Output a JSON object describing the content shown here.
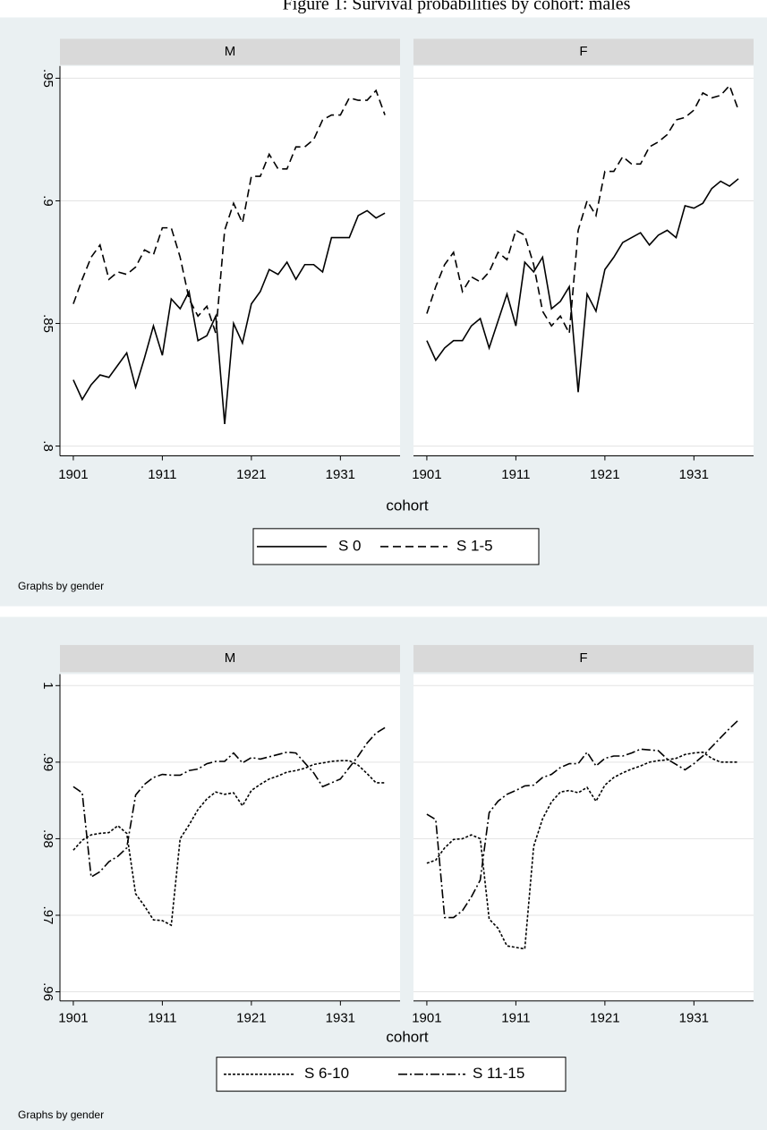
{
  "title": "Figure 1: Survival probabilities by cohort: males",
  "chart_data": [
    {
      "type": "line",
      "xlabel": "cohort",
      "note": "Graphs by gender",
      "grid": true,
      "x": [
        1901,
        1902,
        1903,
        1904,
        1905,
        1906,
        1907,
        1908,
        1909,
        1910,
        1911,
        1912,
        1913,
        1914,
        1915,
        1916,
        1917,
        1918,
        1919,
        1920,
        1921,
        1922,
        1923,
        1924,
        1925,
        1926,
        1927,
        1928,
        1929,
        1930,
        1931,
        1932,
        1933,
        1934,
        1935,
        1936
      ],
      "xlim": [
        1899.5,
        1937.7
      ],
      "xticks": [
        1901,
        1911,
        1921,
        1931
      ],
      "ylim": [
        0.796,
        0.955
      ],
      "yticks": [
        {
          "value": 0.8,
          "label": ".8"
        },
        {
          "value": 0.85,
          "label": ".85"
        },
        {
          "value": 0.9,
          "label": ".9"
        },
        {
          "value": 0.95,
          "label": ".95"
        }
      ],
      "series": [
        {
          "name": "S 0",
          "color": "#000000",
          "dash": "solid"
        },
        {
          "name": "S 1-5",
          "color": "#000000",
          "dash": "longdash"
        }
      ],
      "panels": [
        {
          "title": "M",
          "values": [
            [
              0.827,
              0.819,
              0.825,
              0.829,
              0.828,
              0.833,
              0.838,
              0.824,
              0.836,
              0.849,
              0.837,
              0.86,
              0.856,
              0.863,
              0.843,
              0.845,
              0.853,
              0.809,
              0.85,
              0.842,
              0.858,
              0.863,
              0.872,
              0.87,
              0.875,
              0.868,
              0.874,
              0.874,
              0.871,
              0.885,
              0.885,
              0.885,
              0.894,
              0.896,
              0.893,
              0.895
            ],
            [
              0.858,
              0.868,
              0.877,
              0.882,
              0.868,
              0.871,
              0.87,
              0.873,
              0.88,
              0.878,
              0.889,
              0.889,
              0.877,
              0.86,
              0.853,
              0.857,
              0.846,
              0.888,
              0.899,
              0.891,
              0.91,
              0.91,
              0.919,
              0.913,
              0.913,
              0.922,
              0.922,
              0.925,
              0.933,
              0.935,
              0.935,
              0.942,
              0.941,
              0.941,
              0.945,
              0.935
            ]
          ]
        },
        {
          "title": "F",
          "values": [
            [
              0.843,
              0.835,
              0.84,
              0.843,
              0.843,
              0.849,
              0.852,
              0.84,
              0.851,
              0.862,
              0.849,
              0.875,
              0.871,
              0.877,
              0.856,
              0.859,
              0.865,
              0.822,
              0.862,
              0.855,
              0.872,
              0.877,
              0.883,
              0.885,
              0.887,
              0.882,
              0.886,
              0.888,
              0.885,
              0.898,
              0.897,
              0.899,
              0.905,
              0.908,
              0.906,
              0.909
            ],
            [
              0.854,
              0.865,
              0.874,
              0.879,
              0.863,
              0.869,
              0.867,
              0.871,
              0.879,
              0.876,
              0.888,
              0.886,
              0.874,
              0.855,
              0.849,
              0.853,
              0.846,
              0.888,
              0.9,
              0.894,
              0.912,
              0.912,
              0.918,
              0.915,
              0.915,
              0.922,
              0.924,
              0.927,
              0.933,
              0.934,
              0.937,
              0.944,
              0.942,
              0.943,
              0.947,
              0.937
            ]
          ]
        }
      ]
    },
    {
      "type": "line",
      "xlabel": "cohort",
      "note": "Graphs by gender",
      "grid": true,
      "x": [
        1901,
        1902,
        1903,
        1904,
        1905,
        1906,
        1907,
        1908,
        1909,
        1910,
        1911,
        1912,
        1913,
        1914,
        1915,
        1916,
        1917,
        1918,
        1919,
        1920,
        1921,
        1922,
        1923,
        1924,
        1925,
        1926,
        1927,
        1928,
        1929,
        1930,
        1931,
        1932,
        1933,
        1934,
        1935,
        1936
      ],
      "xlim": [
        1899.5,
        1937.7
      ],
      "xticks": [
        1901,
        1911,
        1921,
        1931
      ],
      "ylim": [
        0.9588,
        1.0015
      ],
      "yticks": [
        {
          "value": 0.96,
          "label": ".96"
        },
        {
          "value": 0.97,
          "label": ".97"
        },
        {
          "value": 0.98,
          "label": ".98"
        },
        {
          "value": 0.99,
          "label": ".99"
        },
        1
      ],
      "series": [
        {
          "name": "S 6-10",
          "color": "#000000",
          "dash": "shortdash"
        },
        {
          "name": "S 11-15",
          "color": "#000000",
          "dash": "dashdot"
        }
      ],
      "panels": [
        {
          "title": "M",
          "values": [
            [
              0.9785,
              0.9798,
              0.9805,
              0.9807,
              0.9808,
              0.9817,
              0.9807,
              0.9728,
              0.9712,
              0.9694,
              0.9693,
              0.9687,
              0.98,
              0.9818,
              0.9838,
              0.9852,
              0.9861,
              0.9858,
              0.986,
              0.9843,
              0.9863,
              0.9871,
              0.9878,
              0.9882,
              0.9887,
              0.9889,
              0.9892,
              0.9897,
              0.9899,
              0.9901,
              0.9902,
              0.9902,
              0.9896,
              0.9885,
              0.9873,
              0.9873
            ],
            [
              0.9868,
              0.986,
              0.975,
              0.9757,
              0.977,
              0.9777,
              0.9788,
              0.9857,
              0.9871,
              0.988,
              0.9884,
              0.9883,
              0.9883,
              0.9889,
              0.9891,
              0.9898,
              0.9901,
              0.9901,
              0.9912,
              0.9899,
              0.9906,
              0.9904,
              0.9907,
              0.991,
              0.9913,
              0.9912,
              0.9899,
              0.9886,
              0.9868,
              0.9873,
              0.9878,
              0.9893,
              0.9908,
              0.9925,
              0.9938,
              0.9945
            ]
          ]
        },
        {
          "title": "F",
          "values": [
            [
              0.9768,
              0.9772,
              0.9788,
              0.9799,
              0.98,
              0.9805,
              0.98,
              0.9695,
              0.9683,
              0.966,
              0.9658,
              0.9656,
              0.979,
              0.9826,
              0.9848,
              0.9861,
              0.9863,
              0.986,
              0.9867,
              0.9849,
              0.987,
              0.988,
              0.9886,
              0.9891,
              0.9895,
              0.99,
              0.9902,
              0.9903,
              0.9905,
              0.991,
              0.9912,
              0.9913,
              0.9905,
              0.99,
              0.99,
              0.99
            ],
            [
              0.9832,
              0.9825,
              0.9697,
              0.9697,
              0.9706,
              0.9724,
              0.9746,
              0.9834,
              0.9849,
              0.9858,
              0.9863,
              0.9869,
              0.987,
              0.988,
              0.9884,
              0.9893,
              0.9898,
              0.9898,
              0.9913,
              0.9895,
              0.9905,
              0.9908,
              0.9908,
              0.9912,
              0.9917,
              0.9916,
              0.9915,
              0.9904,
              0.9897,
              0.989,
              0.9898,
              0.9908,
              0.992,
              0.9932,
              0.9944,
              0.9955
            ]
          ]
        }
      ]
    }
  ]
}
